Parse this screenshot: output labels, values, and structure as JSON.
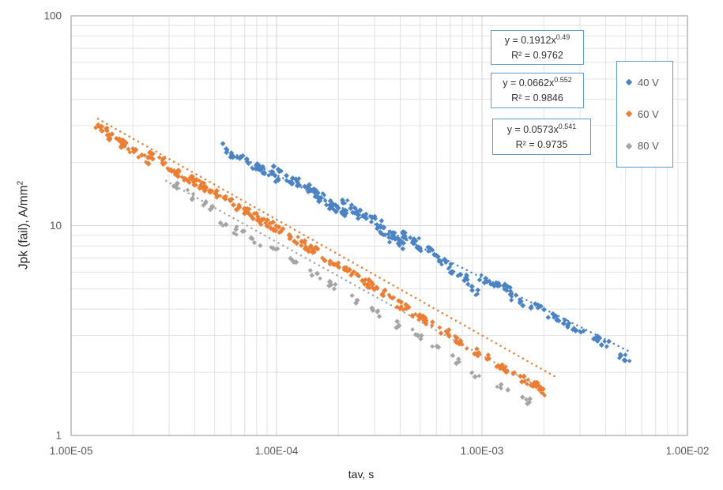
{
  "chart_data": {
    "type": "scatter",
    "title": "",
    "x_axis": {
      "label": "tav, s",
      "scale": "log",
      "min": 1e-05,
      "max": 0.01,
      "ticks": [
        {
          "label": "1.00E-05",
          "value": 1e-05
        },
        {
          "label": "1.00E-04",
          "value": 0.0001
        },
        {
          "label": "1.00E-03",
          "value": 0.001
        },
        {
          "label": "1.00E-02",
          "value": 0.01
        }
      ]
    },
    "y_axis": {
      "label": "Jpk (fail),  A/mm²",
      "label_main": "Jpk (fail),  A/mm",
      "label_sup": "2",
      "scale": "log",
      "min": 1,
      "max": 100,
      "ticks": [
        {
          "label": "1",
          "value": 1
        },
        {
          "label": "10",
          "value": 10
        },
        {
          "label": "100",
          "value": 100
        }
      ]
    },
    "grid": "major and minor log gridlines, both axes",
    "legend_position": "right",
    "colors": {
      "box_border": "#5B9BD5",
      "grid_minor": "#E2E2E2",
      "grid_major": "#D4D4D4",
      "plot_border": "#ABABAB",
      "tick_text": "#595959"
    },
    "series": [
      {
        "name": "40 V",
        "color": "#4A84C6",
        "marker": "diamond",
        "blob": "large",
        "seed": 7,
        "fit": {
          "a": 0.1912,
          "b": -0.49
        },
        "trend_x": [
          5.8e-05,
          0.0052
        ],
        "equation": {
          "text": "y = 0.1912x^0.49",
          "base": "y = 0.1912x",
          "exponent": "0.49",
          "r2": "R² = 0.9762"
        },
        "clusters": [
          [
            6e-05,
            22.5
          ],
          [
            6.6e-05,
            21.0
          ],
          [
            7.9e-05,
            19.0
          ],
          [
            9.2e-05,
            17.3
          ],
          [
            0.000105,
            17.8
          ],
          [
            0.000118,
            16.2
          ],
          [
            0.000136,
            15.6
          ],
          [
            0.000155,
            14.2
          ],
          [
            0.000175,
            13.0
          ],
          [
            0.0002,
            12.0
          ],
          [
            0.00023,
            12.4
          ],
          [
            0.00026,
            11.0
          ],
          [
            0.0003,
            10.6
          ],
          [
            0.00034,
            9.3
          ],
          [
            0.00039,
            8.3
          ],
          [
            0.00045,
            8.7
          ],
          [
            0.00053,
            7.7
          ],
          [
            0.00064,
            6.7
          ],
          [
            0.00077,
            5.9
          ],
          [
            0.0009,
            4.9
          ],
          [
            0.00105,
            5.5
          ],
          [
            0.00125,
            5.1
          ],
          [
            0.0015,
            4.4
          ],
          [
            0.0019,
            4.0
          ],
          [
            0.0024,
            3.5
          ],
          [
            0.003,
            3.1
          ],
          [
            0.0038,
            2.8
          ],
          [
            0.0049,
            2.35
          ]
        ]
      },
      {
        "name": "60 V",
        "color": "#ED7D31",
        "marker": "diamond",
        "blob": "large",
        "seed": 13,
        "fit": {
          "a": 0.0662,
          "b": -0.552
        },
        "trend_x": [
          1.35e-05,
          0.0023
        ],
        "equation": {
          "text": "y = 0.0662x^0.552",
          "base": "y = 0.0662x",
          "exponent": "0.552",
          "r2": "R² = 0.9846"
        },
        "clusters": [
          [
            1.45e-05,
            29.0
          ],
          [
            1.65e-05,
            25.5
          ],
          [
            1.9e-05,
            23.5
          ],
          [
            2.2e-05,
            21.5
          ],
          [
            2.6e-05,
            21.0
          ],
          [
            3e-05,
            19.0
          ],
          [
            3.5e-05,
            17.3
          ],
          [
            4.1e-05,
            16.0
          ],
          [
            4.8e-05,
            14.6
          ],
          [
            5.6e-05,
            13.4
          ],
          [
            6.6e-05,
            12.2
          ],
          [
            7.7e-05,
            11.2
          ],
          [
            9e-05,
            10.2
          ],
          [
            0.000106,
            9.4
          ],
          [
            0.000125,
            8.6
          ],
          [
            0.00015,
            7.7
          ],
          [
            0.00018,
            6.9
          ],
          [
            0.00022,
            6.1
          ],
          [
            0.00027,
            5.4
          ],
          [
            0.00033,
            4.8
          ],
          [
            0.0004,
            4.2
          ],
          [
            0.0005,
            3.7
          ],
          [
            0.00063,
            3.2
          ],
          [
            0.0008,
            2.75
          ],
          [
            0.001,
            2.4
          ],
          [
            0.0013,
            2.05
          ],
          [
            0.0017,
            1.8
          ],
          [
            0.0021,
            1.55
          ]
        ]
      },
      {
        "name": "80 V",
        "color": "#A5A5A5",
        "marker": "diamond",
        "blob": "small",
        "seed": 21,
        "fit": {
          "a": 0.0573,
          "b": -0.541
        },
        "trend_x": [
          2.9e-05,
          0.002
        ],
        "equation": {
          "text": "y = 0.0573x^0.541",
          "base": "y = 0.0573x",
          "exponent": "0.541",
          "r2": "R² = 0.9735"
        },
        "clusters": [
          [
            3.3e-05,
            15.3
          ],
          [
            3.9e-05,
            13.8
          ],
          [
            4.6e-05,
            12.4
          ],
          [
            5.5e-05,
            10.4
          ],
          [
            6.6e-05,
            9.3
          ],
          [
            8e-05,
            8.4
          ],
          [
            0.0001,
            7.5
          ],
          [
            0.000125,
            6.6
          ],
          [
            0.000155,
            5.8
          ],
          [
            0.00019,
            5.1
          ],
          [
            0.00024,
            4.5
          ],
          [
            0.0003,
            3.9
          ],
          [
            0.00038,
            3.4
          ],
          [
            0.00048,
            3.0
          ],
          [
            0.0006,
            2.6
          ],
          [
            0.00076,
            2.25
          ],
          [
            0.00095,
            1.95
          ],
          [
            0.00125,
            1.7
          ],
          [
            0.0016,
            1.5
          ]
        ]
      }
    ]
  }
}
